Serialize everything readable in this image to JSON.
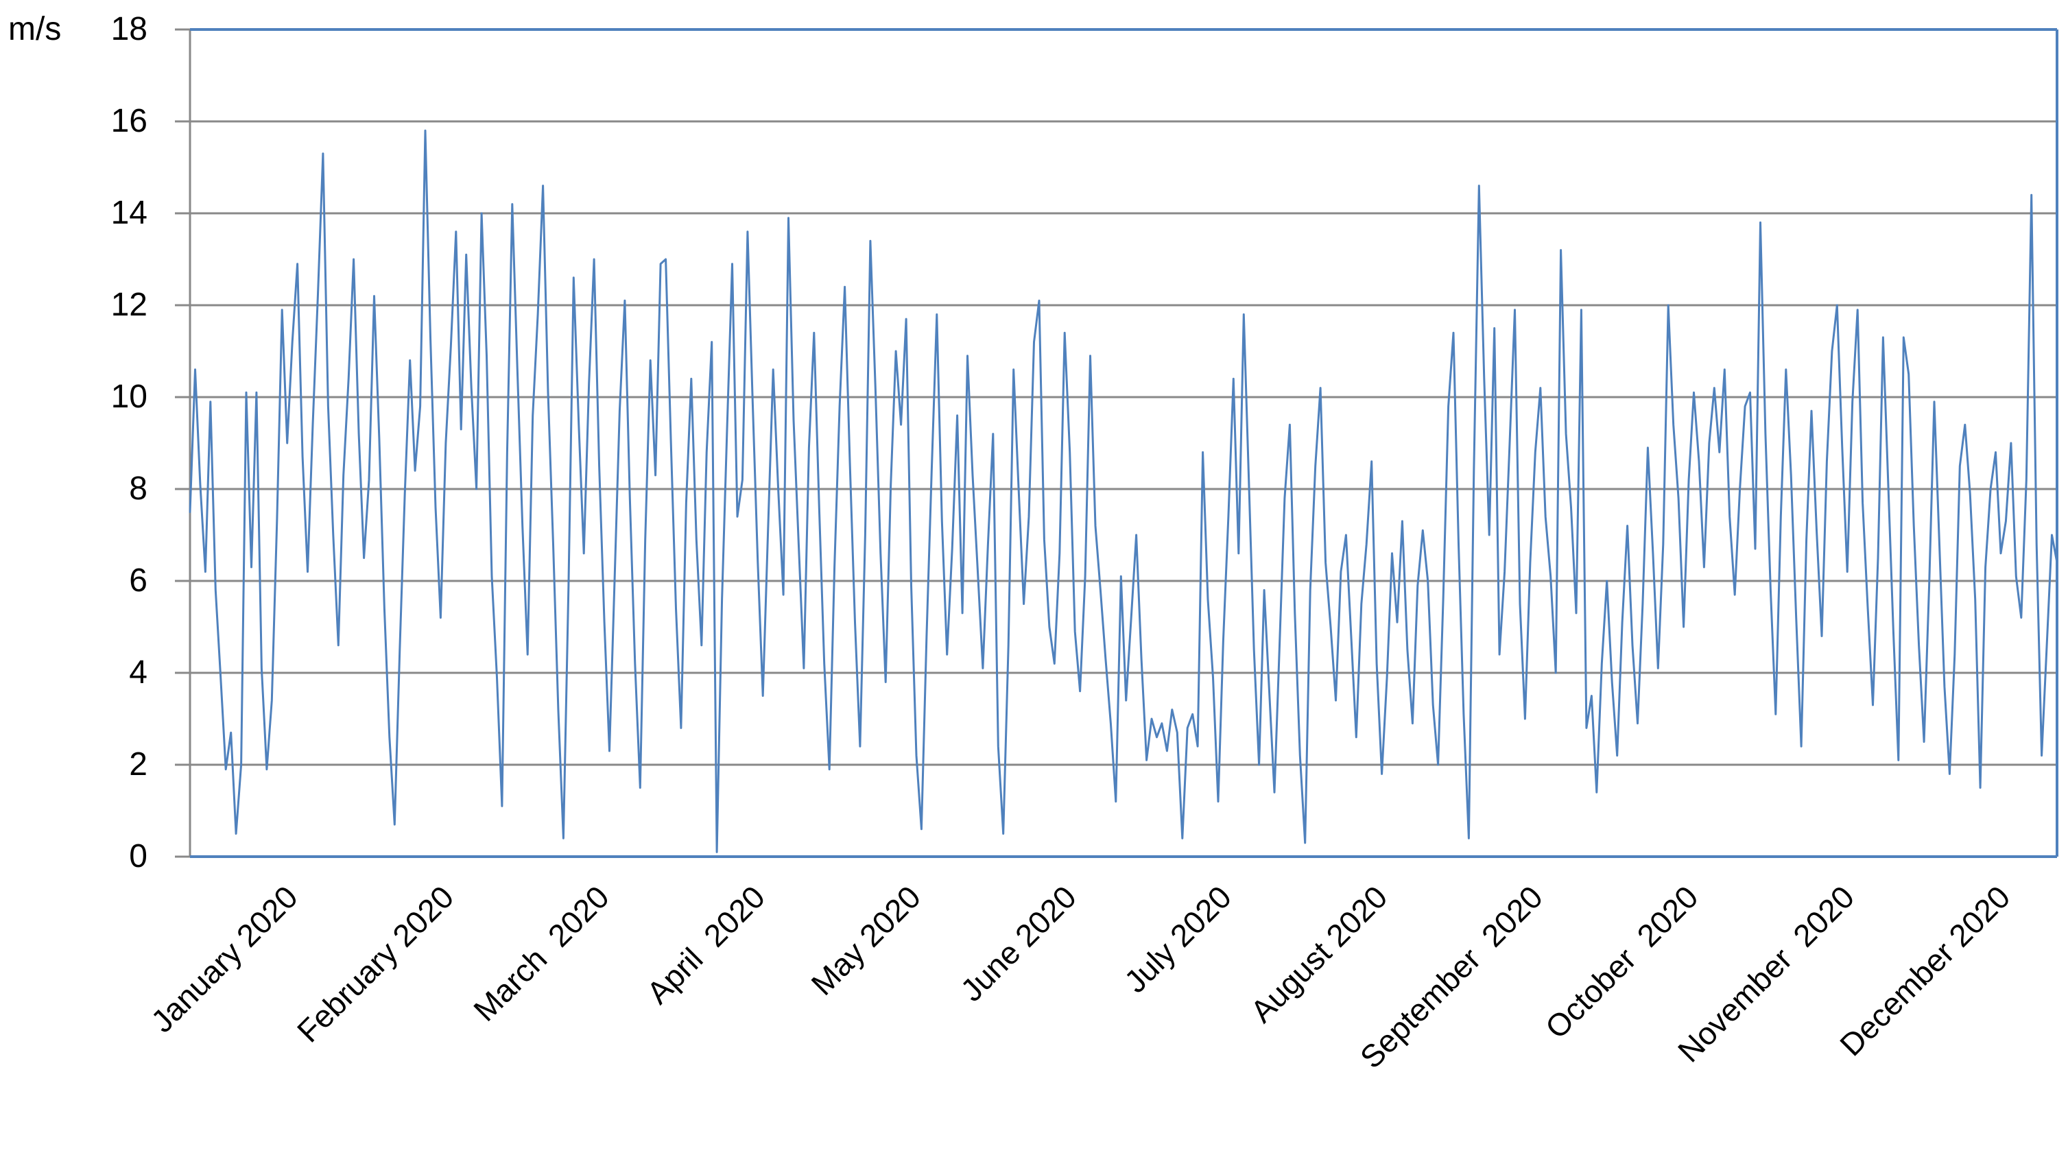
{
  "chart_data": {
    "type": "line",
    "title": "",
    "ylabel_unit": "m/s",
    "xlabel": "",
    "ylim": [
      0,
      18
    ],
    "ytick_step": 2,
    "yticks": [
      "0",
      "2",
      "4",
      "6",
      "8",
      "10",
      "12",
      "14",
      "16",
      "18"
    ],
    "grid": true,
    "legend_position": "none",
    "categories": [
      "January 2020",
      "February 2020",
      "March  2020",
      "April  2020",
      "May 2020",
      "June 2020",
      "July 2020",
      "August 2020",
      "September  2020",
      "October  2020",
      "November  2020",
      "December 2020"
    ],
    "sampling": "daily",
    "series": [
      {
        "values": [
          7.5,
          10.6,
          8.1,
          6.2,
          9.9,
          5.8,
          3.9,
          1.9,
          2.7,
          0.5,
          2.0,
          10.1,
          6.3,
          10.1,
          4.1,
          1.9,
          3.4,
          7.3,
          11.9,
          9.0,
          11.2,
          12.9,
          8.7,
          6.2,
          9.4,
          12.2,
          15.3,
          9.8,
          7.0,
          4.6,
          8.3,
          10.4,
          13.0,
          9.2,
          6.5,
          8.2,
          12.2,
          9.1,
          5.4,
          2.6,
          0.7,
          4.5,
          7.9,
          10.8,
          8.4,
          9.8,
          15.8,
          11.3,
          7.6,
          5.2,
          9.0,
          11.1,
          13.6,
          9.3,
          13.1,
          10.2,
          8.0,
          14.0,
          10.9,
          6.1,
          3.9,
          1.1,
          8.8,
          14.2,
          10.6,
          7.2,
          4.4,
          9.6,
          11.8,
          14.6,
          10.1,
          6.8,
          3.2,
          0.4,
          5.9,
          12.6,
          9.4,
          6.6,
          10.3,
          13.0,
          8.5,
          5.1,
          2.3,
          6.0,
          9.7,
          12.1,
          7.8,
          4.2,
          1.5,
          6.9,
          10.8,
          8.3,
          12.9,
          13.0,
          9.1,
          5.4,
          2.8,
          7.7,
          10.4,
          6.9,
          4.6,
          8.8,
          11.2,
          0.1,
          5.6,
          9.3,
          12.9,
          7.4,
          8.2,
          13.6,
          9.9,
          6.4,
          3.5,
          7.1,
          10.6,
          8.0,
          5.7,
          13.9,
          9.5,
          6.8,
          4.1,
          8.9,
          11.4,
          7.6,
          4.2,
          1.9,
          6.3,
          9.8,
          12.4,
          8.6,
          5.1,
          2.4,
          7.0,
          13.4,
          10.2,
          6.6,
          3.8,
          8.1,
          11.0,
          9.4,
          11.7,
          5.9,
          2.2,
          0.6,
          4.8,
          8.4,
          11.8,
          7.3,
          4.4,
          6.7,
          9.6,
          5.3,
          10.9,
          8.3,
          6.2,
          4.1,
          6.8,
          9.2,
          2.4,
          0.5,
          4.6,
          10.6,
          8.0,
          5.5,
          7.4,
          11.2,
          12.1,
          6.9,
          5.0,
          4.2,
          6.6,
          11.4,
          8.8,
          4.9,
          3.6,
          6.1,
          10.9,
          7.2,
          5.8,
          4.3,
          2.9,
          1.2,
          6.1,
          3.4,
          5.2,
          7.0,
          4.3,
          2.1,
          3.0,
          2.6,
          2.9,
          2.3,
          3.2,
          2.7,
          0.4,
          2.8,
          3.1,
          2.4,
          8.8,
          5.6,
          3.9,
          1.2,
          4.7,
          7.4,
          10.4,
          6.6,
          11.8,
          8.2,
          4.5,
          2.0,
          5.8,
          3.6,
          1.4,
          4.6,
          7.8,
          9.4,
          5.3,
          2.2,
          0.3,
          5.8,
          8.5,
          10.2,
          6.4,
          5.0,
          3.4,
          6.2,
          7.0,
          4.8,
          2.6,
          5.5,
          6.8,
          8.6,
          4.2,
          1.8,
          3.9,
          6.6,
          5.1,
          7.3,
          4.5,
          2.9,
          5.9,
          7.1,
          6.0,
          3.3,
          2.0,
          5.6,
          9.8,
          11.4,
          6.8,
          3.1,
          0.4,
          8.4,
          14.6,
          10.4,
          7.0,
          11.5,
          4.4,
          6.2,
          9.0,
          11.9,
          5.5,
          3.0,
          6.4,
          8.8,
          10.2,
          7.4,
          6.1,
          4.0,
          13.2,
          9.2,
          7.6,
          5.3,
          11.9,
          2.8,
          3.5,
          1.4,
          4.2,
          6.0,
          3.8,
          2.2,
          5.1,
          7.2,
          4.6,
          2.9,
          5.5,
          8.9,
          6.6,
          4.1,
          6.8,
          12.0,
          9.4,
          7.8,
          5.0,
          8.2,
          10.1,
          8.6,
          6.3,
          9.0,
          10.2,
          8.8,
          10.6,
          7.4,
          5.7,
          8.0,
          9.8,
          10.1,
          6.7,
          13.8,
          9.2,
          5.8,
          3.1,
          7.4,
          10.6,
          8.3,
          5.2,
          2.4,
          6.9,
          9.7,
          7.1,
          4.8,
          8.6,
          11.0,
          12.0,
          8.9,
          6.2,
          9.9,
          11.9,
          7.7,
          5.4,
          3.3,
          6.5,
          11.3,
          8.1,
          4.9,
          2.1,
          11.3,
          10.5,
          7.2,
          4.6,
          2.5,
          5.9,
          9.9,
          6.8,
          3.7,
          1.8,
          4.4,
          8.5,
          9.4,
          7.9,
          5.6,
          1.5,
          6.3,
          8.0,
          8.8,
          6.6,
          7.3,
          9.0,
          6.1,
          5.2,
          8.2,
          14.4,
          6.8,
          2.2,
          4.6,
          7.0,
          6.4
        ]
      }
    ],
    "colors": {
      "line": "#4F81BD",
      "plot_border": "#4F81BD",
      "grid": "#898989",
      "axis": "#898989",
      "text": "#000000",
      "background": "#FFFFFF"
    }
  }
}
